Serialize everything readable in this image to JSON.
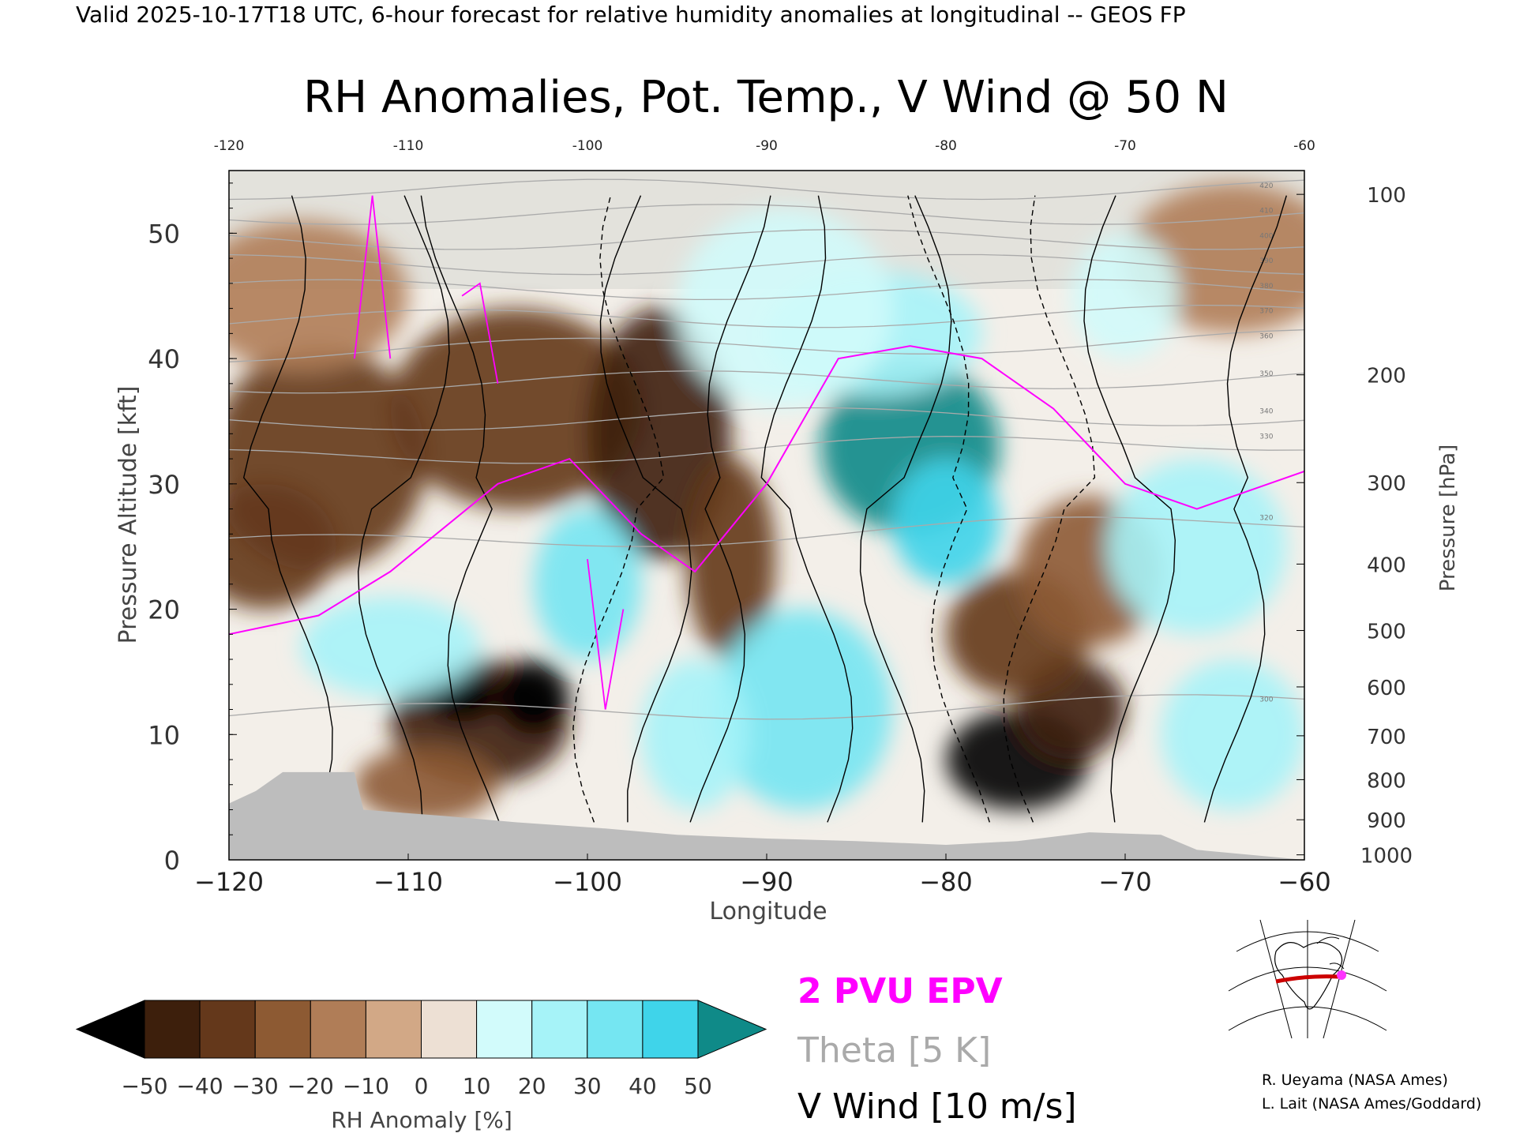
{
  "header": {
    "valid_line": "Valid 2025-10-17T18 UTC, 6-hour forecast for relative humidity anomalies at longitudinal -- GEOS FP"
  },
  "chart_data": {
    "type": "heatmap",
    "title": "RH Anomalies, Pot. Temp., V Wind @ 50 N",
    "xlabel": "Longitude",
    "ylabel_left": "Pressure Altitude [kft]",
    "ylabel_right": "Pressure [hPa]",
    "xlim": [
      -120,
      -60
    ],
    "ylim": [
      0,
      55
    ],
    "x_ticks": [
      -120,
      -110,
      -100,
      -90,
      -80,
      -70,
      -60
    ],
    "x_tick_labels_bottom": [
      "−120",
      "−110",
      "−100",
      "−90",
      "−80",
      "−70",
      "−60"
    ],
    "x_tick_labels_top": [
      "-120",
      "-110",
      "-100",
      "-90",
      "-80",
      "-70",
      "-60"
    ],
    "y_ticks_kft": [
      0,
      10,
      20,
      30,
      40,
      50
    ],
    "y_tick_labels_kft": [
      "0",
      "10",
      "20",
      "30",
      "40",
      "50"
    ],
    "pressure_ticks": [
      {
        "hPa": 100,
        "kft": 53.1,
        "label": "100"
      },
      {
        "hPa": 200,
        "kft": 38.7,
        "label": "200"
      },
      {
        "hPa": 300,
        "kft": 30.1,
        "label": "300"
      },
      {
        "hPa": 400,
        "kft": 23.6,
        "label": "400"
      },
      {
        "hPa": 500,
        "kft": 18.3,
        "label": "500"
      },
      {
        "hPa": 600,
        "kft": 13.8,
        "label": "600"
      },
      {
        "hPa": 700,
        "kft": 9.9,
        "label": "700"
      },
      {
        "hPa": 800,
        "kft": 6.4,
        "label": "800"
      },
      {
        "hPa": 900,
        "kft": 3.2,
        "label": "900"
      },
      {
        "hPa": 1000,
        "kft": 0.4,
        "label": "1000"
      }
    ],
    "theta_contours_K": [
      {
        "K": 300,
        "kft_start": 11.5,
        "kft_end": 12.5,
        "label": "300"
      },
      {
        "K": 320,
        "kft_start": 25.0,
        "kft_end": 27.0,
        "label": "320"
      },
      {
        "K": 330,
        "kft_start": 32.0,
        "kft_end": 33.5,
        "label": "330"
      },
      {
        "K": 340,
        "kft_start": 35.0,
        "kft_end": 35.5,
        "label": "340"
      },
      {
        "K": 350,
        "kft_start": 38.0,
        "kft_end": 38.5,
        "label": "350"
      },
      {
        "K": 360,
        "kft_start": 40.5,
        "kft_end": 41.5,
        "label": "360"
      },
      {
        "K": 370,
        "kft_start": 43.0,
        "kft_end": 43.5,
        "label": "370"
      },
      {
        "K": 380,
        "kft_start": 45.5,
        "kft_end": 45.5,
        "label": "380"
      },
      {
        "K": 390,
        "kft_start": 47.5,
        "kft_end": 47.5,
        "label": "390"
      },
      {
        "K": 400,
        "kft_start": 49.5,
        "kft_end": 49.5,
        "label": "400"
      },
      {
        "K": 410,
        "kft_start": 51.5,
        "kft_end": 51.5,
        "label": "410"
      },
      {
        "K": 420,
        "kft_start": 53.5,
        "kft_end": 53.5,
        "label": "420"
      }
    ],
    "rh_anomaly_blobs": [
      {
        "lon": -115,
        "kft": 32,
        "value": -35,
        "rx": 6,
        "ry": 9
      },
      {
        "lon": -104,
        "kft": 36,
        "value": -40,
        "rx": 7,
        "ry": 8
      },
      {
        "lon": -96,
        "kft": 34,
        "value": -45,
        "rx": 4,
        "ry": 10
      },
      {
        "lon": -118,
        "kft": 25,
        "value": -40,
        "rx": 4,
        "ry": 5
      },
      {
        "lon": -106,
        "kft": 11,
        "value": -48,
        "rx": 5,
        "ry": 5
      },
      {
        "lon": -103,
        "kft": 13,
        "value": -50,
        "rx": 2,
        "ry": 3
      },
      {
        "lon": -107,
        "kft": 13,
        "value": -50,
        "rx": 2,
        "ry": 2
      },
      {
        "lon": -109,
        "kft": 6,
        "value": -30,
        "rx": 4,
        "ry": 3
      },
      {
        "lon": -92,
        "kft": 24,
        "value": -35,
        "rx": 2.5,
        "ry": 8
      },
      {
        "lon": -76,
        "kft": 8,
        "value": -50,
        "rx": 4,
        "ry": 4
      },
      {
        "lon": -73,
        "kft": 12,
        "value": -45,
        "rx": 3,
        "ry": 4
      },
      {
        "lon": -76,
        "kft": 18,
        "value": -40,
        "rx": 4,
        "ry": 5
      },
      {
        "lon": -72,
        "kft": 23,
        "value": -30,
        "rx": 4,
        "ry": 6
      },
      {
        "lon": -64,
        "kft": 48,
        "value": -15,
        "rx": 6,
        "ry": 6
      },
      {
        "lon": -116,
        "kft": 45,
        "value": -18,
        "rx": 6,
        "ry": 6
      },
      {
        "lon": -82,
        "kft": 33,
        "value": 50,
        "rx": 5,
        "ry": 7
      },
      {
        "lon": -80,
        "kft": 27,
        "value": 45,
        "rx": 3,
        "ry": 5
      },
      {
        "lon": -84,
        "kft": 42,
        "value": 25,
        "rx": 6,
        "ry": 5
      },
      {
        "lon": -89,
        "kft": 44,
        "value": 15,
        "rx": 6,
        "ry": 8
      },
      {
        "lon": -111,
        "kft": 17,
        "value": 25,
        "rx": 5,
        "ry": 4
      },
      {
        "lon": -100,
        "kft": 22,
        "value": 30,
        "rx": 3,
        "ry": 6
      },
      {
        "lon": -88,
        "kft": 12,
        "value": 30,
        "rx": 5,
        "ry": 8
      },
      {
        "lon": -94,
        "kft": 10,
        "value": 25,
        "rx": 3,
        "ry": 6
      },
      {
        "lon": -66,
        "kft": 25,
        "value": 20,
        "rx": 5,
        "ry": 7
      },
      {
        "lon": -64,
        "kft": 10,
        "value": 20,
        "rx": 4,
        "ry": 6
      },
      {
        "lon": -70,
        "kft": 45,
        "value": 15,
        "rx": 3,
        "ry": 5
      }
    ],
    "v_wind_contours_ms": [
      -30,
      -20,
      -10,
      0,
      10,
      20,
      30
    ],
    "epv_contour_pvu": 2,
    "legend": {
      "epv": "2 PVU EPV",
      "theta": "Theta [5 K]",
      "vwind": "V Wind [10 m/s]",
      "epv_color": "#ff00ff",
      "theta_color": "#aaaaaa",
      "vwind_color": "#000000"
    },
    "colorbar": {
      "label": "RH Anomaly [%]",
      "ticks": [
        -50,
        -40,
        -30,
        -20,
        -10,
        0,
        10,
        20,
        30,
        40,
        50
      ],
      "tick_labels": [
        "−50",
        "−40",
        "−30",
        "−20",
        "−10",
        "0",
        "10",
        "20",
        "30",
        "40",
        "50"
      ],
      "colors": [
        "#3d1f0c",
        "#64381b",
        "#8d5a33",
        "#b07d57",
        "#d2a886",
        "#ede0d4",
        "#d2fbfb",
        "#a6f3f8",
        "#75e6f2",
        "#3fd4ea",
        "#16a7c6"
      ],
      "under_color": "#000000",
      "over_color": "#0f8a88"
    },
    "terrain_color": "#bdbdbd",
    "inset_map": {
      "section_lat": "50 N",
      "line_color": "#cc0000",
      "marker_color": "#ff33ff"
    },
    "credits": [
      "R. Ueyama (NASA Ames)",
      "L. Lait (NASA Ames/Goddard)"
    ]
  }
}
